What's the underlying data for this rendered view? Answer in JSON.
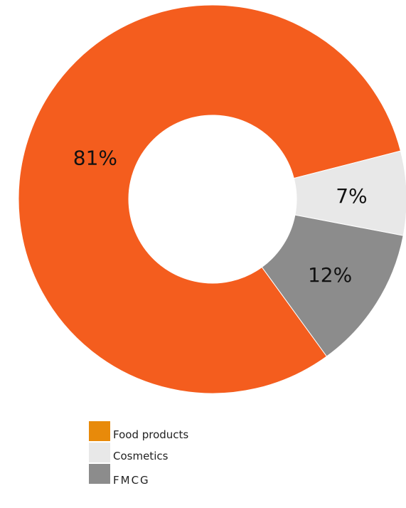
{
  "chart_data": {
    "type": "pie",
    "variant": "donut",
    "slices": [
      {
        "label": "Food products",
        "value": 81,
        "display": "81%",
        "color": "#f45d1e"
      },
      {
        "label": "Cosmetics",
        "value": 7,
        "display": "7%",
        "color": "#e8e8e8"
      },
      {
        "label": "FMCG",
        "value": 12,
        "display": "12%",
        "color": "#8c8c8c"
      }
    ],
    "legend": {
      "placement": "bottom",
      "entries": [
        {
          "label": "Food products",
          "color": "#e88a0a"
        },
        {
          "label": "Cosmetics",
          "color": "#e8e8e8"
        },
        {
          "label": "FMCG",
          "color": "#8c8c8c"
        }
      ]
    }
  }
}
